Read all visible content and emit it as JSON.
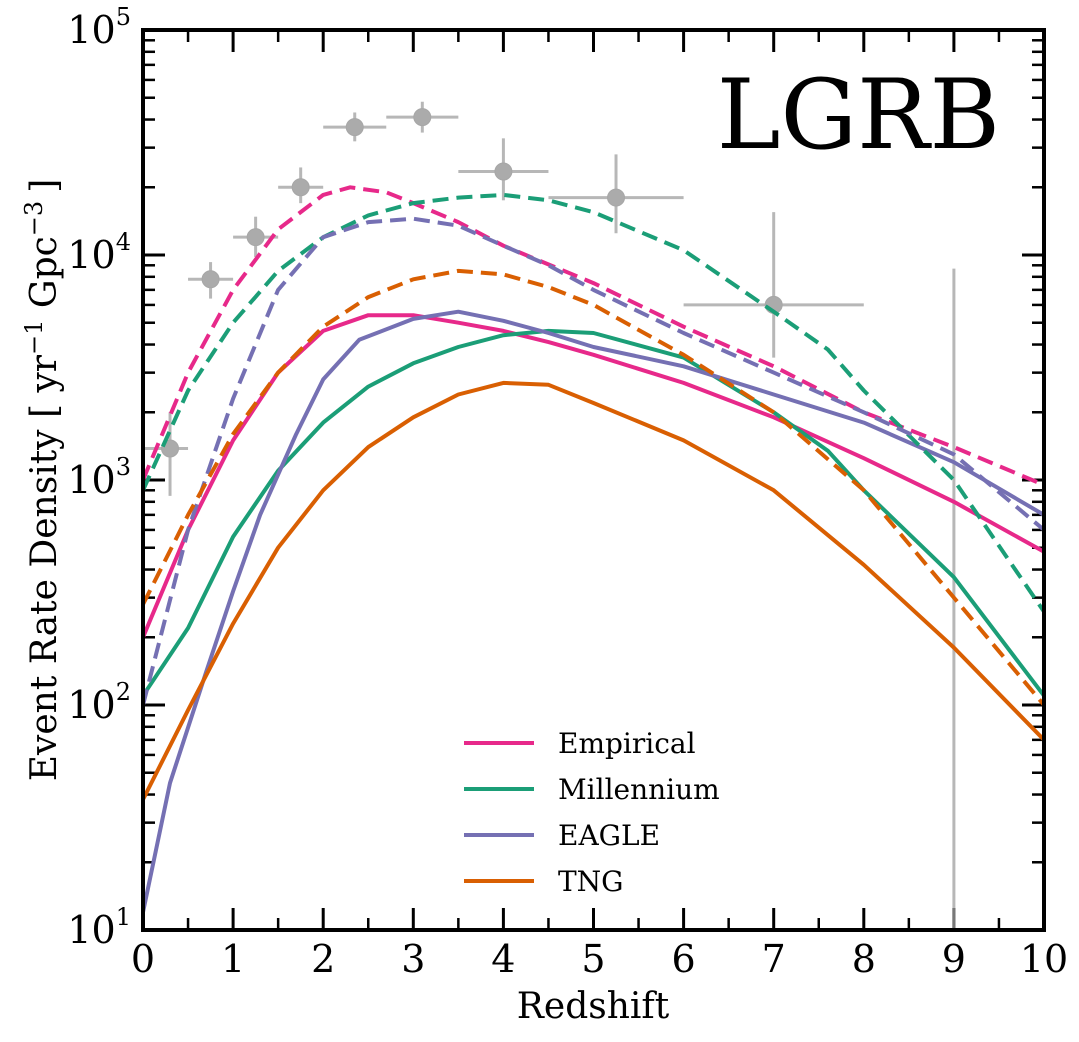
{
  "chart_data": {
    "type": "line",
    "title": "LGRB",
    "xlabel": "Redshift",
    "ylabel": "Event Rate Density [ yr",
    "ylabel_sup1": "−1",
    "ylabel_mid": " Gpc",
    "ylabel_sup2": "−3",
    "ylabel_end": "]",
    "xlim": [
      0,
      10
    ],
    "ylim": [
      10,
      100000
    ],
    "yscale": "log",
    "x_ticks": [
      0,
      1,
      2,
      3,
      4,
      5,
      6,
      7,
      8,
      9,
      10
    ],
    "x_tick_labels": [
      "0",
      "1",
      "2",
      "3",
      "4",
      "5",
      "6",
      "7",
      "8",
      "9",
      "10"
    ],
    "y_ticks": [
      10,
      100,
      1000,
      10000,
      100000
    ],
    "y_tick_labels": [
      {
        "base": "10",
        "exp": "1"
      },
      {
        "base": "10",
        "exp": "2"
      },
      {
        "base": "10",
        "exp": "3"
      },
      {
        "base": "10",
        "exp": "4"
      },
      {
        "base": "10",
        "exp": "5"
      }
    ],
    "grid": false,
    "legend_position": "bottom-center",
    "colors": {
      "Empirical": "#e7298a",
      "Millennium": "#1b9e77",
      "EAGLE": "#7570b3",
      "TNG": "#d95f02",
      "observations": "#a0a0a0"
    },
    "series": [
      {
        "name": "Empirical",
        "style": "solid",
        "x": [
          0,
          0.5,
          1,
          1.5,
          2,
          2.5,
          3,
          3.5,
          4,
          4.5,
          5,
          6,
          7,
          8,
          9,
          10
        ],
        "y": [
          200,
          600,
          1500,
          3000,
          4600,
          5400,
          5400,
          5000,
          4600,
          4100,
          3600,
          2700,
          1900,
          1250,
          800,
          480
        ]
      },
      {
        "name": "Millennium",
        "style": "solid",
        "x": [
          0,
          0.5,
          1,
          1.5,
          2,
          2.5,
          3,
          3.5,
          4,
          4.5,
          5,
          6,
          7,
          7.6,
          8,
          9,
          10
        ],
        "y": [
          110,
          220,
          560,
          1100,
          1800,
          2600,
          3300,
          3900,
          4400,
          4600,
          4500,
          3500,
          2000,
          1350,
          900,
          370,
          110
        ]
      },
      {
        "name": "EAGLE",
        "style": "solid",
        "x": [
          0,
          0.3,
          0.7,
          1,
          1.3,
          1.7,
          2,
          2.4,
          3,
          3.5,
          4,
          4.5,
          5,
          6,
          7,
          8,
          9,
          10
        ],
        "y": [
          12,
          45,
          140,
          320,
          700,
          1600,
          2800,
          4200,
          5200,
          5600,
          5100,
          4500,
          3900,
          3200,
          2400,
          1800,
          1200,
          700
        ]
      },
      {
        "name": "TNG",
        "style": "solid",
        "x": [
          0,
          0.5,
          1,
          1.5,
          2,
          2.5,
          3,
          3.5,
          4,
          4.5,
          5,
          6,
          7,
          8,
          9,
          10
        ],
        "y": [
          38,
          95,
          230,
          500,
          900,
          1400,
          1900,
          2400,
          2700,
          2650,
          2200,
          1500,
          900,
          420,
          180,
          70
        ]
      },
      {
        "name": "Empirical (dashed)",
        "style": "dashed",
        "x": [
          0,
          0.5,
          1,
          1.5,
          2,
          2.3,
          2.7,
          3,
          3.5,
          4,
          5,
          6,
          7,
          8,
          9,
          10
        ],
        "y": [
          1000,
          3000,
          7000,
          13000,
          18500,
          20000,
          19000,
          17000,
          14000,
          11000,
          7500,
          4800,
          3200,
          2000,
          1400,
          950
        ]
      },
      {
        "name": "Millennium (dashed)",
        "style": "dashed",
        "x": [
          0,
          0.5,
          1,
          1.5,
          2,
          2.5,
          3,
          3.5,
          4,
          4.5,
          5,
          6,
          7,
          7.6,
          8,
          9,
          10
        ],
        "y": [
          900,
          2500,
          5000,
          8500,
          12000,
          15000,
          17000,
          18000,
          18500,
          17500,
          15500,
          10500,
          5600,
          3800,
          2500,
          1000,
          260
        ]
      },
      {
        "name": "EAGLE (dashed)",
        "style": "dashed",
        "x": [
          0,
          0.5,
          1,
          1.5,
          2,
          2.5,
          3,
          3.5,
          4,
          4.5,
          5,
          6,
          7,
          8,
          9,
          10
        ],
        "y": [
          100,
          600,
          2300,
          7000,
          12000,
          14000,
          14500,
          13500,
          11000,
          9000,
          7000,
          4500,
          3000,
          2000,
          1300,
          600
        ]
      },
      {
        "name": "TNG (dashed)",
        "style": "dashed",
        "x": [
          0,
          0.5,
          1,
          1.5,
          2,
          2.5,
          3,
          3.5,
          4,
          4.5,
          5,
          6,
          7,
          8,
          9,
          10
        ],
        "y": [
          280,
          700,
          1600,
          3000,
          4800,
          6500,
          7800,
          8500,
          8200,
          7200,
          6000,
          3600,
          2000,
          900,
          300,
          100
        ]
      }
    ],
    "observations": [
      {
        "x": 0.3,
        "y": 1380,
        "xerr": [
          0.3,
          0.2
        ],
        "yerr": [
          850,
          2000
        ]
      },
      {
        "x": 0.75,
        "y": 7800,
        "xerr": [
          0.25,
          0.25
        ],
        "yerr": [
          6400,
          9300
        ]
      },
      {
        "x": 1.25,
        "y": 12000,
        "xerr": [
          0.25,
          0.25
        ],
        "yerr": [
          9800,
          14800
        ]
      },
      {
        "x": 1.75,
        "y": 20000,
        "xerr": [
          0.25,
          0.25
        ],
        "yerr": [
          17000,
          24500
        ]
      },
      {
        "x": 2.35,
        "y": 37000,
        "xerr": [
          0.35,
          0.35
        ],
        "yerr": [
          32000,
          43000
        ]
      },
      {
        "x": 3.1,
        "y": 41000,
        "xerr": [
          0.4,
          0.4
        ],
        "yerr": [
          35000,
          48000
        ]
      },
      {
        "x": 4.0,
        "y": 23500,
        "xerr": [
          0.5,
          0.5
        ],
        "yerr": [
          17500,
          33000
        ]
      },
      {
        "x": 5.25,
        "y": 18000,
        "xerr": [
          0.75,
          0.75
        ],
        "yerr": [
          12500,
          28000
        ]
      },
      {
        "x": 7.0,
        "y": 6000,
        "xerr": [
          1.0,
          1.0
        ],
        "yerr": [
          3500,
          15500
        ]
      },
      {
        "x": 9.0,
        "y": 8700,
        "xerr": [
          0,
          0
        ],
        "yerr": [
          10,
          8700
        ]
      }
    ],
    "legend": [
      "Empirical",
      "Millennium",
      "EAGLE",
      "TNG"
    ]
  }
}
